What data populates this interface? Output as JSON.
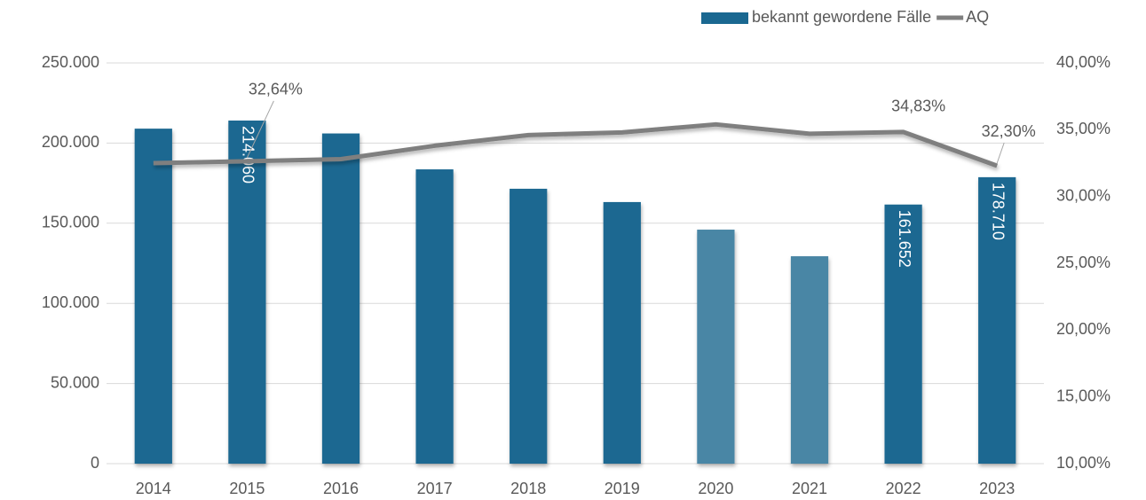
{
  "chart_data": {
    "type": "bar",
    "categories": [
      "2014",
      "2015",
      "2016",
      "2017",
      "2018",
      "2019",
      "2020",
      "2021",
      "2022",
      "2023"
    ],
    "series": [
      {
        "name": "bekannt gewordene Fälle",
        "color": "#1a6891",
        "point_colors": [
          "#1a6891",
          "#1a6891",
          "#1a6891",
          "#1a6891",
          "#1a6891",
          "#1a6891",
          "#4a86a5",
          "#4a86a5",
          "#1a6891",
          "#1a6891"
        ],
        "values": [
          209000,
          214060,
          206000,
          183600,
          171500,
          163200,
          146000,
          129400,
          161652,
          178710
        ],
        "value_labels": [
          null,
          "214.060",
          null,
          null,
          null,
          null,
          null,
          null,
          "161.652",
          "178.710"
        ]
      },
      {
        "name": "AQ",
        "type": "line",
        "axis": "y2",
        "color": "#7f7f7f",
        "values": [
          32.5,
          32.64,
          32.8,
          33.8,
          34.6,
          34.8,
          35.4,
          34.7,
          34.83,
          32.3
        ],
        "value_labels": [
          null,
          "32,64%",
          null,
          null,
          null,
          null,
          null,
          null,
          "34,83%",
          "32,30%"
        ]
      }
    ],
    "ylim": [
      0,
      250000
    ],
    "yticks": [
      0,
      {
        "value": 50000,
        "label": "50.000"
      },
      {
        "value": 100000,
        "label": "100.000"
      },
      {
        "value": 150000,
        "label": "150.000"
      },
      {
        "value": 200000,
        "label": "200.000"
      },
      {
        "value": 250000,
        "label": "250.000"
      }
    ],
    "y2lim": [
      10,
      40
    ],
    "y2ticks": [
      {
        "value": 10,
        "label": "10,00%"
      },
      {
        "value": 15,
        "label": "15,00%"
      },
      {
        "value": 20,
        "label": "20,00%"
      },
      {
        "value": 25,
        "label": "25,00%"
      },
      {
        "value": 30,
        "label": "30,00%"
      },
      {
        "value": 35,
        "label": "35,00%"
      },
      {
        "value": 40,
        "label": "40,00%"
      }
    ],
    "grid": true,
    "legend": "top-right"
  }
}
